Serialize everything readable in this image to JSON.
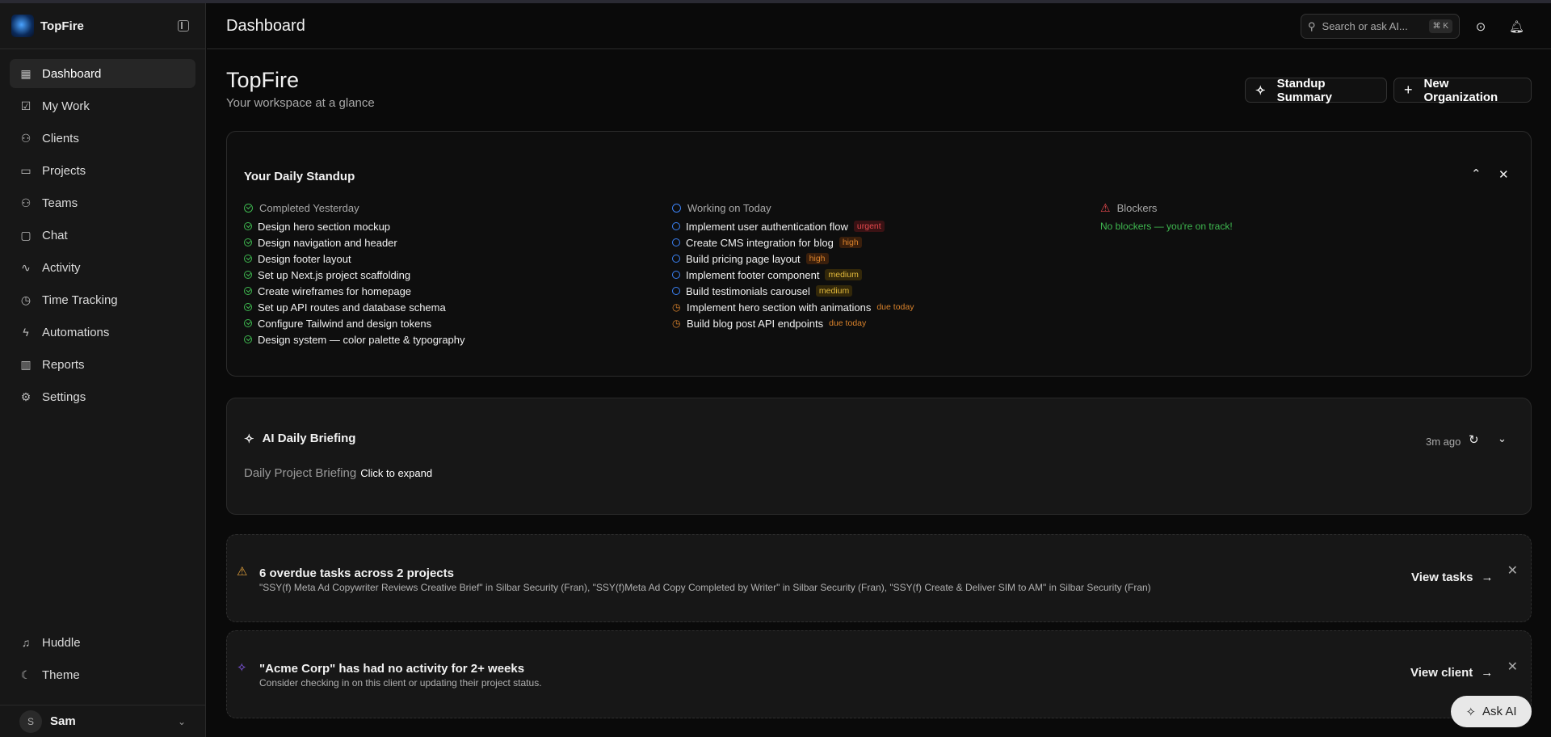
{
  "app": {
    "name": "TopFire"
  },
  "sidebar": {
    "items": [
      {
        "label": "Dashboard",
        "icon": "grid-icon",
        "glyph": "▦"
      },
      {
        "label": "My Work",
        "icon": "checkbox-icon",
        "glyph": "☑"
      },
      {
        "label": "Clients",
        "icon": "users-icon",
        "glyph": "⚇"
      },
      {
        "label": "Projects",
        "icon": "folder-icon",
        "glyph": "▭"
      },
      {
        "label": "Teams",
        "icon": "team-icon",
        "glyph": "⚇"
      },
      {
        "label": "Chat",
        "icon": "message-icon",
        "glyph": "▢"
      },
      {
        "label": "Activity",
        "icon": "activity-icon",
        "glyph": "∿"
      },
      {
        "label": "Time Tracking",
        "icon": "clock-icon",
        "glyph": "◷"
      },
      {
        "label": "Automations",
        "icon": "zap-icon",
        "glyph": "ϟ"
      },
      {
        "label": "Reports",
        "icon": "bar-chart-icon",
        "glyph": "▥"
      },
      {
        "label": "Settings",
        "icon": "gear-icon",
        "glyph": "⚙"
      }
    ],
    "bottom": [
      {
        "label": "Huddle",
        "icon": "headphones-icon",
        "glyph": "♫"
      },
      {
        "label": "Theme",
        "icon": "moon-icon",
        "glyph": "☾"
      }
    ],
    "user": {
      "initial": "S",
      "name": "Sam"
    }
  },
  "header": {
    "title": "Dashboard",
    "search_placeholder": "Search or ask AI...",
    "shortcut": "⌘ K"
  },
  "page": {
    "title": "TopFire",
    "subtitle": "Your workspace at a glance",
    "standup_button": "Standup Summary",
    "new_org_button": "New Organization"
  },
  "standup": {
    "title": "Your Daily Standup",
    "completed": {
      "heading": "Completed Yesterday",
      "items": [
        "Design hero section mockup",
        "Design navigation and header",
        "Design footer layout",
        "Set up Next.js project scaffolding",
        "Create wireframes for homepage",
        "Set up API routes and database schema",
        "Configure Tailwind and design tokens",
        "Design system — color palette & typography"
      ]
    },
    "working": {
      "heading": "Working on Today",
      "items": [
        {
          "label": "Implement user authentication flow",
          "tag": "urgent",
          "kind": "priority"
        },
        {
          "label": "Create CMS integration for blog",
          "tag": "high",
          "kind": "priority"
        },
        {
          "label": "Build pricing page layout",
          "tag": "high",
          "kind": "priority"
        },
        {
          "label": "Implement footer component",
          "tag": "medium",
          "kind": "priority"
        },
        {
          "label": "Build testimonials carousel",
          "tag": "medium",
          "kind": "priority"
        },
        {
          "label": "Implement hero section with animations",
          "tag": "due today",
          "kind": "due"
        },
        {
          "label": "Build blog post API endpoints",
          "tag": "due today",
          "kind": "due"
        }
      ]
    },
    "blockers": {
      "heading": "Blockers",
      "message": "No blockers — you're on track!"
    }
  },
  "briefing": {
    "title": "AI Daily Briefing",
    "time": "3m ago",
    "label": "Daily Project Briefing",
    "action": "Click to expand"
  },
  "alerts": [
    {
      "title": "6 overdue tasks across 2 projects",
      "body": "\"SSY(f) Meta Ad Copywriter Reviews Creative Brief\" in Silbar Security (Fran), \"SSY(f)Meta Ad Copy Completed by Writer\" in Silbar Security (Fran), \"SSY(f) Create & Deliver SIM to AM\" in Silbar Security (Fran)",
      "action": "View tasks"
    },
    {
      "title": "\"Acme Corp\" has had no activity for 2+ weeks",
      "body": "Consider checking in on this client or updating their project status.",
      "action": "View client"
    }
  ],
  "ask_ai": "Ask AI",
  "colors": {
    "green": "#3fb950",
    "blue": "#3b82f6",
    "red": "#e5484d",
    "orange": "#d9822b",
    "yellow": "#e2b93b",
    "purple": "#8b5cf6",
    "urgent_bg": "#3a1214",
    "high_bg": "#3a1f0c",
    "medium_bg": "#33280a"
  }
}
